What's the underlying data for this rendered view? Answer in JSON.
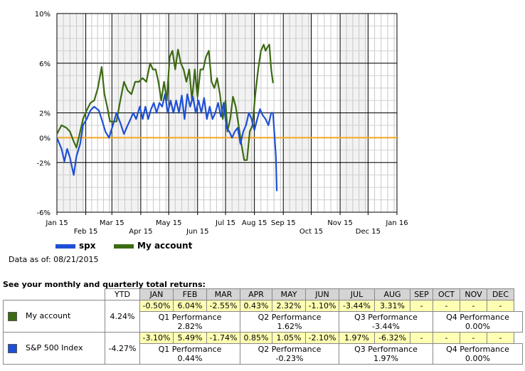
{
  "chart_data": {
    "type": "line",
    "y_ticks": [
      "10%",
      "6%",
      "2%",
      "0%",
      "-2%",
      "-6%"
    ],
    "x_ticks_top": [
      "Jan 15",
      "Mar 15",
      "May 15",
      "Jul 15",
      "Aug 15",
      "Sep 15",
      "Nov 15",
      "Jan 16"
    ],
    "x_ticks_bottom": [
      "Feb 15",
      "Apr 15",
      "Jun 15",
      "Oct 15",
      "Dec 15"
    ],
    "ylim": [
      -6,
      10
    ],
    "baseline": 0,
    "series": [
      {
        "name": "spx",
        "color": "#1e4fd6",
        "points": [
          [
            "2015-01-01",
            0.0
          ],
          [
            "2015-01-06",
            -0.9
          ],
          [
            "2015-01-09",
            -1.9
          ],
          [
            "2015-01-12",
            -0.9
          ],
          [
            "2015-01-15",
            -1.6
          ],
          [
            "2015-01-19",
            -3.0
          ],
          [
            "2015-01-22",
            -1.5
          ],
          [
            "2015-01-26",
            -0.5
          ],
          [
            "2015-01-29",
            1.0
          ],
          [
            "2015-02-02",
            1.5
          ],
          [
            "2015-02-06",
            2.2
          ],
          [
            "2015-02-10",
            2.5
          ],
          [
            "2015-02-15",
            2.2
          ],
          [
            "2015-02-18",
            1.5
          ],
          [
            "2015-02-22",
            0.5
          ],
          [
            "2015-02-26",
            0.0
          ],
          [
            "2015-03-02",
            1.0
          ],
          [
            "2015-03-06",
            2.0
          ],
          [
            "2015-03-10",
            1.2
          ],
          [
            "2015-03-14",
            0.3
          ],
          [
            "2015-03-18",
            1.0
          ],
          [
            "2015-03-21",
            1.5
          ],
          [
            "2015-03-24",
            2.0
          ],
          [
            "2015-03-27",
            1.5
          ],
          [
            "2015-03-31",
            2.5
          ],
          [
            "2015-04-03",
            1.5
          ],
          [
            "2015-04-06",
            2.5
          ],
          [
            "2015-04-09",
            1.5
          ],
          [
            "2015-04-12",
            2.3
          ],
          [
            "2015-04-15",
            2.8
          ],
          [
            "2015-04-18",
            2.0
          ],
          [
            "2015-04-21",
            2.8
          ],
          [
            "2015-04-24",
            2.5
          ],
          [
            "2015-04-27",
            3.5
          ],
          [
            "2015-04-30",
            2.0
          ],
          [
            "2015-05-03",
            3.0
          ],
          [
            "2015-05-06",
            2.0
          ],
          [
            "2015-05-09",
            3.0
          ],
          [
            "2015-05-12",
            2.0
          ],
          [
            "2015-05-15",
            3.4
          ],
          [
            "2015-05-18",
            1.5
          ],
          [
            "2015-05-21",
            3.5
          ],
          [
            "2015-05-24",
            2.5
          ],
          [
            "2015-05-27",
            3.3
          ],
          [
            "2015-05-30",
            2.0
          ],
          [
            "2015-06-02",
            3.0
          ],
          [
            "2015-06-05",
            2.0
          ],
          [
            "2015-06-08",
            3.2
          ],
          [
            "2015-06-11",
            1.5
          ],
          [
            "2015-06-14",
            2.5
          ],
          [
            "2015-06-17",
            1.5
          ],
          [
            "2015-06-20",
            2.0
          ],
          [
            "2015-06-23",
            2.8
          ],
          [
            "2015-06-26",
            1.7
          ],
          [
            "2015-06-29",
            2.8
          ],
          [
            "2015-07-02",
            0.8
          ],
          [
            "2015-07-05",
            0.5
          ],
          [
            "2015-07-08",
            0.0
          ],
          [
            "2015-07-11",
            0.5
          ],
          [
            "2015-07-14",
            0.8
          ],
          [
            "2015-07-17",
            -0.5
          ],
          [
            "2015-07-20",
            0.5
          ],
          [
            "2015-07-23",
            1.0
          ],
          [
            "2015-07-26",
            2.0
          ],
          [
            "2015-07-29",
            1.5
          ],
          [
            "2015-08-01",
            0.6
          ],
          [
            "2015-08-04",
            1.5
          ],
          [
            "2015-08-07",
            2.3
          ],
          [
            "2015-08-10",
            1.8
          ],
          [
            "2015-08-13",
            1.5
          ],
          [
            "2015-08-16",
            1.0
          ],
          [
            "2015-08-19",
            2.0
          ],
          [
            "2015-08-21",
            2.0
          ],
          [
            "2015-08-24",
            -1.5
          ],
          [
            "2015-08-25",
            -4.3
          ]
        ]
      },
      {
        "name": "My account",
        "color": "#3c6b12",
        "points": [
          [
            "2015-01-01",
            0.3
          ],
          [
            "2015-01-06",
            1.0
          ],
          [
            "2015-01-11",
            0.8
          ],
          [
            "2015-01-15",
            0.5
          ],
          [
            "2015-01-19",
            -0.3
          ],
          [
            "2015-01-22",
            -0.8
          ],
          [
            "2015-01-26",
            0.5
          ],
          [
            "2015-01-29",
            1.5
          ],
          [
            "2015-02-02",
            2.2
          ],
          [
            "2015-02-06",
            2.8
          ],
          [
            "2015-02-10",
            3.0
          ],
          [
            "2015-02-14",
            4.0
          ],
          [
            "2015-02-18",
            5.7
          ],
          [
            "2015-02-21",
            3.5
          ],
          [
            "2015-02-24",
            2.5
          ],
          [
            "2015-02-27",
            1.3
          ],
          [
            "2015-03-02",
            1.3
          ],
          [
            "2015-03-06",
            1.3
          ],
          [
            "2015-03-10",
            3.0
          ],
          [
            "2015-03-14",
            4.5
          ],
          [
            "2015-03-18",
            3.8
          ],
          [
            "2015-03-22",
            3.5
          ],
          [
            "2015-03-26",
            4.5
          ],
          [
            "2015-03-30",
            4.5
          ],
          [
            "2015-04-03",
            4.8
          ],
          [
            "2015-04-07",
            4.5
          ],
          [
            "2015-04-11",
            6.0
          ],
          [
            "2015-04-14",
            5.5
          ],
          [
            "2015-04-17",
            5.5
          ],
          [
            "2015-04-20",
            4.5
          ],
          [
            "2015-04-23",
            3.0
          ],
          [
            "2015-04-26",
            4.5
          ],
          [
            "2015-04-29",
            3.0
          ],
          [
            "2015-05-02",
            6.5
          ],
          [
            "2015-05-05",
            7.0
          ],
          [
            "2015-05-08",
            5.5
          ],
          [
            "2015-05-11",
            7.1
          ],
          [
            "2015-05-14",
            6.0
          ],
          [
            "2015-05-17",
            5.5
          ],
          [
            "2015-05-20",
            4.5
          ],
          [
            "2015-05-23",
            5.5
          ],
          [
            "2015-05-26",
            3.0
          ],
          [
            "2015-05-29",
            5.5
          ],
          [
            "2015-06-01",
            3.3
          ],
          [
            "2015-06-04",
            5.5
          ],
          [
            "2015-06-07",
            5.5
          ],
          [
            "2015-06-10",
            6.5
          ],
          [
            "2015-06-13",
            7.0
          ],
          [
            "2015-06-16",
            4.5
          ],
          [
            "2015-06-19",
            4.0
          ],
          [
            "2015-06-22",
            4.8
          ],
          [
            "2015-06-25",
            3.5
          ],
          [
            "2015-06-28",
            1.5
          ],
          [
            "2015-07-01",
            3.0
          ],
          [
            "2015-07-03",
            0.5
          ],
          [
            "2015-07-06",
            1.5
          ],
          [
            "2015-07-09",
            3.3
          ],
          [
            "2015-07-12",
            2.5
          ],
          [
            "2015-07-15",
            1.0
          ],
          [
            "2015-07-18",
            -0.5
          ],
          [
            "2015-07-21",
            -1.8
          ],
          [
            "2015-07-24",
            -1.8
          ],
          [
            "2015-07-27",
            0.5
          ],
          [
            "2015-07-30",
            1.0
          ],
          [
            "2015-08-02",
            3.5
          ],
          [
            "2015-08-05",
            5.5
          ],
          [
            "2015-08-08",
            7.0
          ],
          [
            "2015-08-11",
            7.5
          ],
          [
            "2015-08-13",
            7.0
          ],
          [
            "2015-08-15",
            7.3
          ],
          [
            "2015-08-17",
            7.5
          ],
          [
            "2015-08-19",
            5.5
          ],
          [
            "2015-08-21",
            4.4
          ]
        ]
      }
    ]
  },
  "legend": [
    {
      "label": "spx",
      "color": "#1e4fd6"
    },
    {
      "label": "My account",
      "color": "#3c6b12"
    }
  ],
  "as_of": "Data as of: 08/21/2015",
  "see_returns": "See your monthly and quarterly total returns:",
  "table": {
    "ytd_header": "YTD",
    "months": [
      "JAN",
      "FEB",
      "MAR",
      "APR",
      "MAY",
      "JUN",
      "JUL",
      "AUG",
      "SEP",
      "OCT",
      "NOV",
      "DEC"
    ],
    "rows": [
      {
        "name": "My account",
        "color": "#3c6b12",
        "ytd": "4.24%",
        "monthly": [
          "-0.50%",
          "6.04%",
          "-2.55%",
          "0.43%",
          "2.32%",
          "-1.10%",
          "-3.44%",
          "3.31%",
          "-",
          "-",
          "-",
          "-"
        ],
        "quarters": [
          {
            "label": "Q1 Performance",
            "value": "2.82%"
          },
          {
            "label": "Q2 Performance",
            "value": "1.62%"
          },
          {
            "label": "Q3 Performance",
            "value": "-3.44%"
          },
          {
            "label": "Q4 Performance",
            "value": "0.00%"
          }
        ]
      },
      {
        "name": "S&P 500 Index",
        "color": "#1e4fd6",
        "ytd": "-4.27%",
        "monthly": [
          "-3.10%",
          "5.49%",
          "-1.74%",
          "0.85%",
          "1.05%",
          "-2.10%",
          "1.97%",
          "-6.32%",
          "-",
          "-",
          "-",
          "-"
        ],
        "quarters": [
          {
            "label": "Q1 Performance",
            "value": "0.44%"
          },
          {
            "label": "Q2 Performance",
            "value": "-0.23%"
          },
          {
            "label": "Q3 Performance",
            "value": "1.97%"
          },
          {
            "label": "Q4 Performance",
            "value": "0.00%"
          }
        ]
      }
    ]
  }
}
